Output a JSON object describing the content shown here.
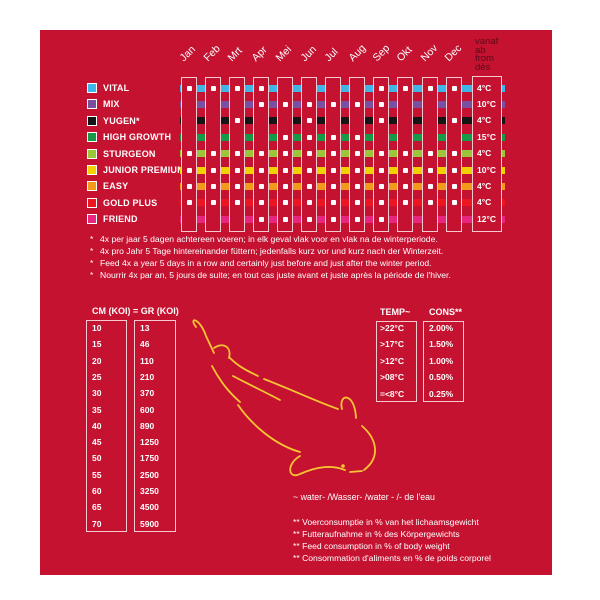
{
  "months": [
    "Jan",
    "Feb",
    "Mrt",
    "Apr",
    "Mei",
    "Jun",
    "Jul",
    "Aug",
    "Sep",
    "Okt",
    "Nov",
    "Dec"
  ],
  "from_label": [
    "vanaf",
    "ab",
    "from",
    "dès"
  ],
  "products": [
    {
      "label": "VITAL",
      "color": "#3fb6e8",
      "from_temp": "4°C",
      "feed": [
        1,
        1,
        1,
        1,
        0,
        0,
        0,
        0,
        1,
        1,
        1,
        1
      ]
    },
    {
      "label": "MIX",
      "color": "#7a4fa0",
      "from_temp": "10°C",
      "feed": [
        0,
        0,
        0,
        1,
        1,
        1,
        1,
        1,
        1,
        0,
        0,
        0
      ]
    },
    {
      "label": "YUGEN*",
      "color": "#151515",
      "from_temp": "4°C",
      "feed": [
        0,
        0,
        1,
        0,
        0,
        1,
        0,
        0,
        1,
        0,
        0,
        1
      ]
    },
    {
      "label": "HIGH GROWTH",
      "color": "#179a48",
      "from_temp": "15°C",
      "feed": [
        0,
        0,
        0,
        0,
        1,
        1,
        1,
        1,
        0,
        0,
        0,
        0
      ]
    },
    {
      "label": "STURGEON",
      "color": "#9cc63a",
      "from_temp": "4°C",
      "feed": [
        1,
        1,
        1,
        1,
        1,
        1,
        1,
        1,
        1,
        1,
        1,
        1
      ]
    },
    {
      "label": "JUNIOR PREMIUM",
      "color": "#f1d200",
      "from_temp": "10°C",
      "feed": [
        1,
        1,
        1,
        1,
        1,
        1,
        1,
        1,
        1,
        1,
        1,
        1
      ]
    },
    {
      "label": "EASY",
      "color": "#f39a1a",
      "from_temp": "4°C",
      "feed": [
        1,
        1,
        1,
        1,
        1,
        1,
        1,
        1,
        1,
        1,
        1,
        1
      ]
    },
    {
      "label": "GOLD PLUS",
      "color": "#ec1520",
      "from_temp": "4°C",
      "feed": [
        1,
        1,
        1,
        1,
        1,
        1,
        1,
        1,
        1,
        1,
        1,
        1
      ]
    },
    {
      "label": "FRIEND",
      "color": "#e8257f",
      "from_temp": "12°C",
      "feed": [
        0,
        0,
        0,
        1,
        1,
        1,
        1,
        1,
        1,
        0,
        0,
        0
      ]
    }
  ],
  "footnotes_star": [
    "4x per jaar 5 dagen achtereen voeren; in elk geval vlak voor en vlak na de winterperiode.",
    "4x pro Jahr 5 Tage hintereinander füttern; jedenfalls kurz vor und kurz nach der Winterzeit.",
    "Feed 4x a year 5 days in a row and certainly just before and just after the winter period.",
    "Nourrir 4x par an, 5 jours de suite; en tout cas juste avant et juste après la période de l'hiver."
  ],
  "size_table": {
    "header": "CM (KOI) = GR (KOI)",
    "cm": [
      "10",
      "15",
      "20",
      "25",
      "30",
      "35",
      "40",
      "45",
      "50",
      "55",
      "60",
      "65",
      "70"
    ],
    "gr": [
      "13",
      "46",
      "110",
      "210",
      "370",
      "600",
      "890",
      "1250",
      "1750",
      "2500",
      "3250",
      "4500",
      "5900"
    ]
  },
  "consumption_table": {
    "temp_header": "TEMP~",
    "cons_header": "CONS**",
    "temp": [
      ">22°C",
      ">17°C",
      ">12°C",
      ">08°C",
      "=<8°C"
    ],
    "cons": [
      "2.00%",
      "1.50%",
      "1.00%",
      "0.50%",
      "0.25%"
    ]
  },
  "water_note": "~   water- /Wasser- /water - /- de l'eau",
  "footnotes_double_star": [
    "** Voerconsumptie in % van het lichaamsgewicht",
    "** Futteraufnahme in % des Körpergewichts",
    "** Feed consumption in % of body weight",
    "** Consommation d'aliments en % de poids corporel"
  ],
  "colors": {
    "background": "#c41230",
    "outline": "#f6c9d0",
    "koi": "#f7c533"
  }
}
